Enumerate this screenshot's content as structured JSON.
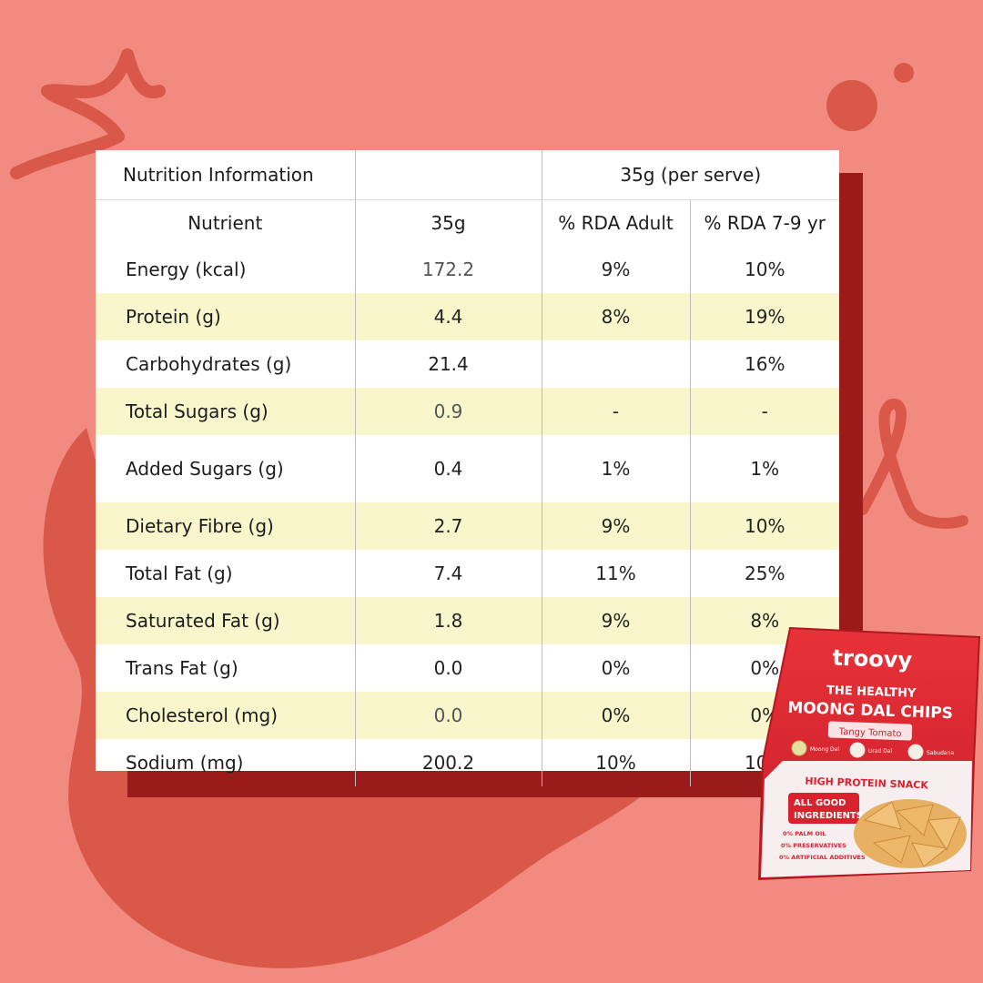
{
  "table": {
    "title": "Nutrition Information",
    "serving_header": "35g (per serve)",
    "columns": [
      "Nutrient",
      "35g",
      "% RDA Adult",
      "% RDA 7-9 yr"
    ],
    "rows": [
      {
        "nutrient": "Energy (kcal)",
        "amount": "172.2",
        "rda_adult": "9%",
        "rda_child": "10%"
      },
      {
        "nutrient": "Protein (g)",
        "amount": "4.4",
        "rda_adult": "8%",
        "rda_child": "19%"
      },
      {
        "nutrient": "Carbohydrates (g)",
        "amount": "21.4",
        "rda_adult": "",
        "rda_child": "16%"
      },
      {
        "nutrient": "Total Sugars (g)",
        "amount": "0.9",
        "rda_adult": "-",
        "rda_child": "-"
      },
      {
        "nutrient": "Added Sugars (g)",
        "amount": "0.4",
        "rda_adult": "1%",
        "rda_child": "1%"
      },
      {
        "nutrient": "Dietary Fibre (g)",
        "amount": "2.7",
        "rda_adult": "9%",
        "rda_child": "10%"
      },
      {
        "nutrient": "Total Fat (g)",
        "amount": "7.4",
        "rda_adult": "11%",
        "rda_child": "25%"
      },
      {
        "nutrient": "Saturated Fat (g)",
        "amount": "1.8",
        "rda_adult": "9%",
        "rda_child": "8%"
      },
      {
        "nutrient": "Trans Fat (g)",
        "amount": "0.0",
        "rda_adult": "0%",
        "rda_child": "0%"
      },
      {
        "nutrient": "Cholesterol (mg)",
        "amount": "0.0",
        "rda_adult": "0%",
        "rda_child": "0%"
      },
      {
        "nutrient": "Sodium (mg)",
        "amount": "200.2",
        "rda_adult": "10%",
        "rda_child": "10%"
      }
    ]
  },
  "package": {
    "brand": "troovy",
    "line1": "THE HEALTHY",
    "line2": "MOONG DAL CHIPS",
    "flavour": "Tangy Tomato",
    "ingredients": [
      "Moong Dal",
      "Urad Dal",
      "Sabudana"
    ],
    "banner": "HIGH PROTEIN SNACK",
    "badge_line1": "ALL GOOD",
    "badge_line2": "INGREDIENTS",
    "claims": [
      "0% PALM OIL",
      "0% PRESERVATIVES",
      "0% ARTIFICIAL ADDITIVES"
    ]
  },
  "colors": {
    "background": "#f28b7f",
    "blob": "#d9584a",
    "shadow_box": "#9b1b1b",
    "row_highlight": "#f9f6cc",
    "pack_red": "#d8232f"
  }
}
